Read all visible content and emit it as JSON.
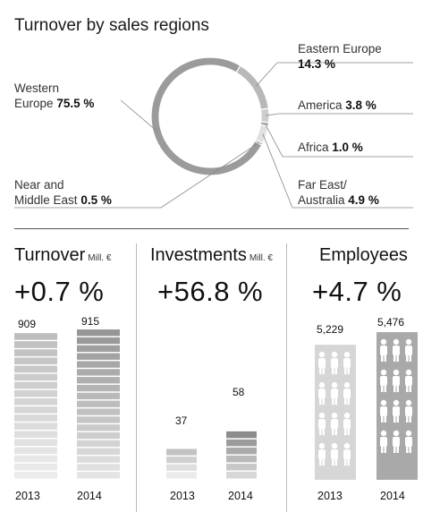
{
  "chart_data": [
    {
      "type": "pie",
      "title": "Turnover by sales regions",
      "slices": [
        {
          "label": "Western Europe",
          "label_lines": [
            "Western",
            "Europe"
          ],
          "value": 75.5,
          "value_label": "75.5 %",
          "color": "#9b9b9b"
        },
        {
          "label": "Eastern Europe",
          "label_lines": [
            "Eastern Europe"
          ],
          "value": 14.3,
          "value_label": "14.3 %",
          "color": "#b8b8b8"
        },
        {
          "label": "America",
          "label_lines": [
            "America"
          ],
          "value": 3.8,
          "value_label": "3.8 %",
          "color": "#cdcdcd"
        },
        {
          "label": "Africa",
          "label_lines": [
            "Africa"
          ],
          "value": 1.0,
          "value_label": "1.0 %",
          "color": "#a9a9a9"
        },
        {
          "label": "Far East/ Australia",
          "label_lines": [
            "Far East/",
            "Australia"
          ],
          "value": 4.9,
          "value_label": "4.9 %",
          "color": "#e1e1e1"
        },
        {
          "label": "Near and Middle East",
          "label_lines": [
            "Near and",
            "Middle East"
          ],
          "value": 0.5,
          "value_label": "0.5 %",
          "color": "#8a8a8a"
        }
      ]
    },
    {
      "type": "bar",
      "title": "Turnover",
      "unit": "Mill. €",
      "change": "+0.7 %",
      "categories": [
        "2013",
        "2014"
      ],
      "values": [
        909,
        915
      ],
      "value_labels": [
        "909",
        "915"
      ],
      "ylim": [
        0,
        915
      ]
    },
    {
      "type": "bar",
      "title": "Investments",
      "unit": "Mill. €",
      "change": "+56.8 %",
      "categories": [
        "2013",
        "2014"
      ],
      "values": [
        37,
        58
      ],
      "value_labels": [
        "37",
        "58"
      ],
      "ylim": [
        0,
        150
      ]
    },
    {
      "type": "bar",
      "title": "Employees",
      "change": "+4.7 %",
      "categories": [
        "2013",
        "2014"
      ],
      "values": [
        5229,
        5476
      ],
      "value_labels": [
        "5,229",
        "5,476"
      ],
      "ylim": [
        0,
        5476
      ]
    }
  ]
}
